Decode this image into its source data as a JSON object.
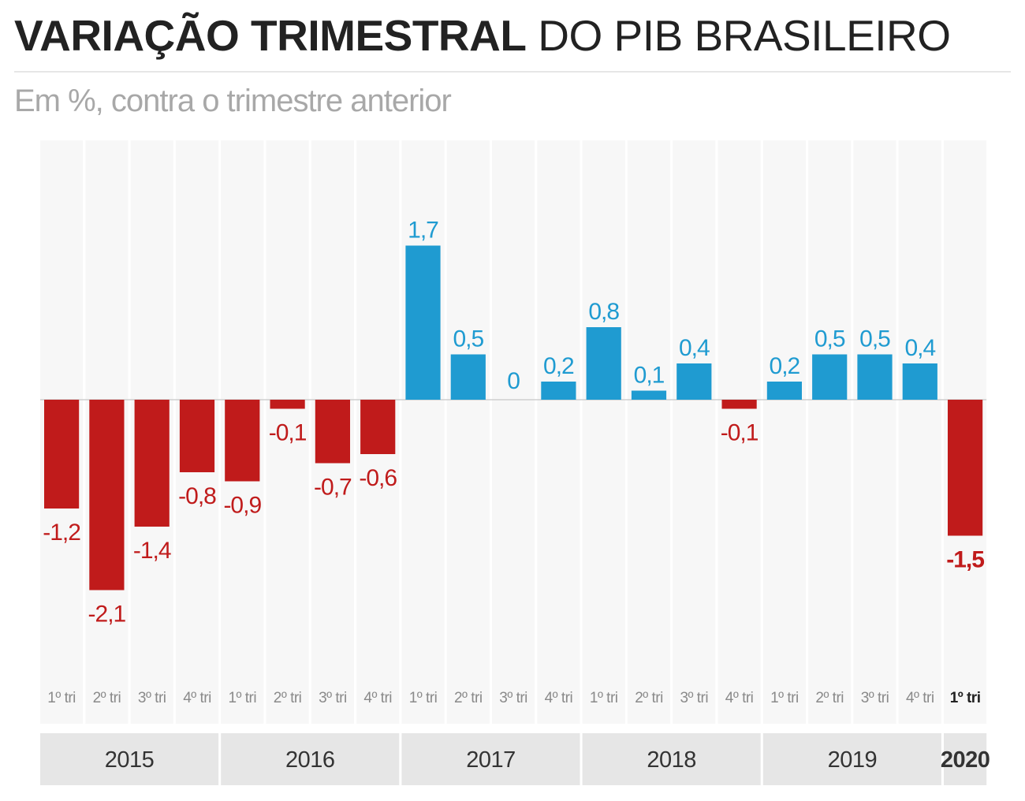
{
  "title_bold": "VARIAÇÃO TRIMESTRAL",
  "title_light": "DO PIB BRASILEIRO",
  "subtitle": "Em %, contra o trimestre anterior",
  "colors": {
    "positive": "#1f9bd1",
    "negative": "#c01b1b",
    "column_bg": "#f7f7f7",
    "year_bg": "#e6e6e6"
  },
  "chart_data": {
    "type": "bar",
    "title": "VARIAÇÃO TRIMESTRAL DO PIB BRASILEIRO",
    "subtitle": "Em %, contra o trimestre anterior",
    "ylim": [
      -2.5,
      2.0
    ],
    "grid": false,
    "categories": [
      {
        "year": "2015",
        "quarter": "1º tri",
        "value": -1.2,
        "label": "-1,2"
      },
      {
        "year": "2015",
        "quarter": "2º tri",
        "value": -2.1,
        "label": "-2,1"
      },
      {
        "year": "2015",
        "quarter": "3º tri",
        "value": -1.4,
        "label": "-1,4"
      },
      {
        "year": "2015",
        "quarter": "4º tri",
        "value": -0.8,
        "label": "-0,8"
      },
      {
        "year": "2016",
        "quarter": "1º tri",
        "value": -0.9,
        "label": "-0,9"
      },
      {
        "year": "2016",
        "quarter": "2º tri",
        "value": -0.1,
        "label": "-0,1"
      },
      {
        "year": "2016",
        "quarter": "3º tri",
        "value": -0.7,
        "label": "-0,7"
      },
      {
        "year": "2016",
        "quarter": "4º tri",
        "value": -0.6,
        "label": "-0,6"
      },
      {
        "year": "2017",
        "quarter": "1º tri",
        "value": 1.7,
        "label": "1,7"
      },
      {
        "year": "2017",
        "quarter": "2º tri",
        "value": 0.5,
        "label": "0,5"
      },
      {
        "year": "2017",
        "quarter": "3º tri",
        "value": 0.0,
        "label": "0"
      },
      {
        "year": "2017",
        "quarter": "4º tri",
        "value": 0.2,
        "label": "0,2"
      },
      {
        "year": "2018",
        "quarter": "1º tri",
        "value": 0.8,
        "label": "0,8"
      },
      {
        "year": "2018",
        "quarter": "2º tri",
        "value": 0.1,
        "label": "0,1"
      },
      {
        "year": "2018",
        "quarter": "3º tri",
        "value": 0.4,
        "label": "0,4"
      },
      {
        "year": "2018",
        "quarter": "4º tri",
        "value": -0.1,
        "label": "-0,1"
      },
      {
        "year": "2019",
        "quarter": "1º tri",
        "value": 0.2,
        "label": "0,2"
      },
      {
        "year": "2019",
        "quarter": "2º tri",
        "value": 0.5,
        "label": "0,5"
      },
      {
        "year": "2019",
        "quarter": "3º tri",
        "value": 0.5,
        "label": "0,5"
      },
      {
        "year": "2019",
        "quarter": "4º tri",
        "value": 0.4,
        "label": "0,4"
      },
      {
        "year": "2020",
        "quarter": "1º tri",
        "value": -1.5,
        "label": "-1,5",
        "highlight": true
      }
    ],
    "years": [
      {
        "label": "2015",
        "count": 4
      },
      {
        "label": "2016",
        "count": 4
      },
      {
        "label": "2017",
        "count": 4
      },
      {
        "label": "2018",
        "count": 4
      },
      {
        "label": "2019",
        "count": 4
      },
      {
        "label": "2020",
        "count": 1,
        "highlight": true
      }
    ]
  }
}
